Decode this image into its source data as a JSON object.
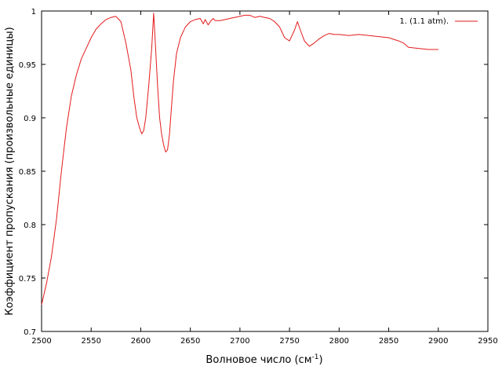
{
  "chart_data": {
    "type": "line",
    "title": "",
    "xlabel": "Волновое число (см",
    "xlabel_sup": "-1",
    "xlabel_suffix": ")",
    "ylabel": "Коэффициент пропускания (произвольные единицы)",
    "xlim": [
      2500,
      2950
    ],
    "ylim": [
      0.7,
      1.0
    ],
    "x_ticks": [
      2500,
      2550,
      2600,
      2650,
      2700,
      2750,
      2800,
      2850,
      2900,
      2950
    ],
    "y_ticks": [
      0.7,
      0.75,
      0.8,
      0.85,
      0.9,
      0.95,
      1.0
    ],
    "y_tick_labels": [
      "0.7",
      "0.75",
      "0.8",
      "0.85",
      "0.9",
      "0.95",
      "1"
    ],
    "grid": false,
    "legend_position": "top-right",
    "series": [
      {
        "name": "1. (1.1 atm).",
        "color": "#e41a1c",
        "x": [
          2500,
          2505,
          2510,
          2515,
          2520,
          2525,
          2530,
          2535,
          2540,
          2545,
          2550,
          2555,
          2560,
          2565,
          2570,
          2575,
          2580,
          2585,
          2590,
          2593,
          2596,
          2599,
          2601,
          2603,
          2605,
          2608,
          2611,
          2613,
          2615,
          2617,
          2619,
          2621,
          2623,
          2625,
          2627,
          2629,
          2631,
          2633,
          2636,
          2640,
          2645,
          2650,
          2655,
          2660,
          2663,
          2665,
          2668,
          2670,
          2673,
          2675,
          2680,
          2690,
          2700,
          2705,
          2710,
          2715,
          2720,
          2725,
          2730,
          2735,
          2740,
          2745,
          2750,
          2755,
          2758,
          2761,
          2765,
          2770,
          2775,
          2780,
          2785,
          2790,
          2795,
          2800,
          2810,
          2820,
          2830,
          2840,
          2850,
          2860,
          2865,
          2870,
          2880,
          2890,
          2900
        ],
        "y": [
          0.725,
          0.745,
          0.77,
          0.805,
          0.85,
          0.89,
          0.92,
          0.94,
          0.955,
          0.965,
          0.975,
          0.983,
          0.988,
          0.992,
          0.994,
          0.995,
          0.99,
          0.97,
          0.945,
          0.92,
          0.9,
          0.89,
          0.885,
          0.888,
          0.9,
          0.93,
          0.965,
          0.998,
          0.965,
          0.93,
          0.9,
          0.885,
          0.875,
          0.868,
          0.87,
          0.885,
          0.91,
          0.935,
          0.96,
          0.975,
          0.985,
          0.99,
          0.992,
          0.993,
          0.988,
          0.992,
          0.987,
          0.99,
          0.993,
          0.991,
          0.991,
          0.993,
          0.995,
          0.996,
          0.996,
          0.994,
          0.995,
          0.994,
          0.993,
          0.99,
          0.985,
          0.975,
          0.972,
          0.982,
          0.99,
          0.982,
          0.972,
          0.967,
          0.97,
          0.974,
          0.977,
          0.979,
          0.978,
          0.978,
          0.977,
          0.978,
          0.977,
          0.976,
          0.975,
          0.972,
          0.97,
          0.966,
          0.965,
          0.964,
          0.964
        ]
      }
    ]
  }
}
